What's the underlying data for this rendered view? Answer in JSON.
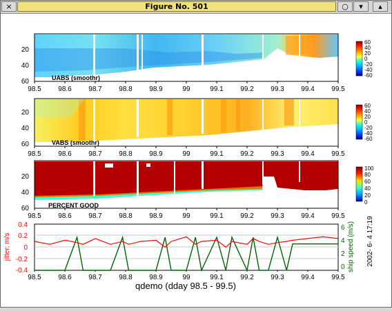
{
  "window": {
    "title": "Figure No. 501",
    "buttons": {
      "close": "×",
      "circle": "○",
      "down": "▾",
      "up": "▴"
    }
  },
  "panels": [
    {
      "label": "UABS  (smoothr)",
      "yticks": [
        "20",
        "40",
        "60"
      ],
      "colorbar_ticks": [
        "60",
        "40",
        "20",
        "0",
        "-20",
        "-40",
        "-60"
      ]
    },
    {
      "label": "VABS  (smoothr)",
      "yticks": [
        "20",
        "40",
        "60"
      ],
      "colorbar_ticks": [
        "60",
        "40",
        "20",
        "0",
        "-20",
        "-40",
        "-60"
      ]
    },
    {
      "label": "PERCENT GOOD",
      "yticks": [
        "20",
        "40",
        "60"
      ],
      "colorbar_ticks": [
        "100",
        "80",
        "60",
        "40",
        "20",
        "0"
      ]
    }
  ],
  "xticks": [
    "98.5",
    "98.6",
    "98.7",
    "98.8",
    "98.9",
    "99",
    "99.1",
    "99.2",
    "99.3",
    "99.4",
    "99.5"
  ],
  "bottom": {
    "left_ticks": [
      "0.4",
      "0.2",
      "0",
      "-0.2",
      "-0.4"
    ],
    "right_ticks": [
      "6",
      "4",
      "2",
      "0"
    ],
    "left_label": "jitter: m/s",
    "right_label": "ship speed (m/s)",
    "xlabel": "qdemo (dday 98.5 - 99.5)",
    "timestamp": "2002- 6- 4  17:19"
  },
  "colors": {
    "jitter": "#ff0000",
    "speed": "#006400",
    "titlebar": "#f2e27c"
  },
  "chart_data": {
    "type": "line",
    "x": [
      98.5,
      98.55,
      98.6,
      98.64,
      98.66,
      98.7,
      98.75,
      98.79,
      98.81,
      98.85,
      98.9,
      98.93,
      98.95,
      99.0,
      99.03,
      99.05,
      99.1,
      99.13,
      99.15,
      99.2,
      99.22,
      99.24,
      99.27,
      99.3,
      99.33,
      99.35,
      99.4,
      99.45,
      99.5
    ],
    "series": [
      {
        "name": "jitter: m/s",
        "values": [
          0.1,
          0.05,
          0.12,
          0.08,
          0.05,
          0.15,
          0.05,
          0.1,
          0.05,
          0.1,
          0.12,
          0.0,
          0.1,
          0.18,
          0.05,
          0.1,
          0.12,
          0.0,
          0.1,
          0.05,
          0.15,
          0.1,
          0.05,
          0.08,
          0.1,
          0.12,
          0.15,
          0.18,
          0.15
        ]
      },
      {
        "name": "ship speed (m/s)",
        "values": [
          0,
          0,
          0,
          5,
          0,
          0,
          0,
          5,
          0,
          0,
          0,
          5,
          0,
          0,
          5,
          0,
          5,
          0,
          5,
          0,
          5,
          0,
          0,
          5,
          0,
          4,
          4,
          4,
          4
        ]
      }
    ],
    "xlim": [
      98.5,
      99.5
    ],
    "ylim": [
      -0.4,
      0.4
    ],
    "y2lim": [
      0,
      7
    ],
    "xlabel": "qdemo (dday 98.5 - 99.5)",
    "ylabel": "jitter: m/s",
    "y2label": "ship speed (m/s)"
  }
}
